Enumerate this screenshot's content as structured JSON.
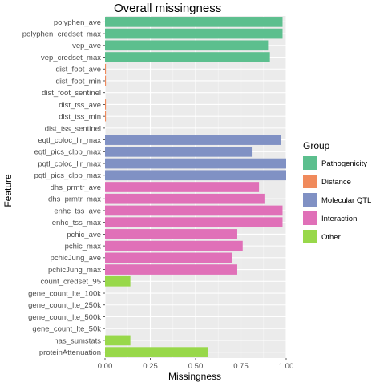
{
  "chart_data": {
    "type": "bar",
    "orientation": "horizontal",
    "title": "Overall missingness",
    "xlabel": "Missingness",
    "ylabel": "Feature",
    "xlim": [
      0,
      1
    ],
    "x_ticks": [
      "0.00",
      "0.25",
      "0.50",
      "0.75",
      "1.00"
    ],
    "grid": true,
    "legend": {
      "title": "Group",
      "position": "right",
      "entries": [
        {
          "name": "Pathogenicity",
          "color": "#5cbf8e"
        },
        {
          "name": "Distance",
          "color": "#f08a5c"
        },
        {
          "name": "Molecular QTL",
          "color": "#8091c4"
        },
        {
          "name": "Interaction",
          "color": "#e070b8"
        },
        {
          "name": "Other",
          "color": "#98d84a"
        }
      ]
    },
    "bars": [
      {
        "feature": "polyphen_ave",
        "group": "Pathogenicity",
        "value": 0.98
      },
      {
        "feature": "polyphen_credset_max",
        "group": "Pathogenicity",
        "value": 0.98
      },
      {
        "feature": "vep_ave",
        "group": "Pathogenicity",
        "value": 0.9
      },
      {
        "feature": "vep_credset_max",
        "group": "Pathogenicity",
        "value": 0.91
      },
      {
        "feature": "dist_foot_ave",
        "group": "Distance",
        "value": 0.005
      },
      {
        "feature": "dist_foot_min",
        "group": "Distance",
        "value": 0.005
      },
      {
        "feature": "dist_foot_sentinel",
        "group": "Distance",
        "value": 0
      },
      {
        "feature": "dist_tss_ave",
        "group": "Distance",
        "value": 0.005
      },
      {
        "feature": "dist_tss_min",
        "group": "Distance",
        "value": 0.005
      },
      {
        "feature": "dist_tss_sentinel",
        "group": "Distance",
        "value": 0
      },
      {
        "feature": "eqtl_coloc_llr_max",
        "group": "Molecular QTL",
        "value": 0.97
      },
      {
        "feature": "eqtl_pics_clpp_max",
        "group": "Molecular QTL",
        "value": 0.81
      },
      {
        "feature": "pqtl_coloc_llr_max",
        "group": "Molecular QTL",
        "value": 1.0
      },
      {
        "feature": "pqtl_pics_clpp_max",
        "group": "Molecular QTL",
        "value": 1.0
      },
      {
        "feature": "dhs_prmtr_ave",
        "group": "Interaction",
        "value": 0.85
      },
      {
        "feature": "dhs_prmtr_max",
        "group": "Interaction",
        "value": 0.88
      },
      {
        "feature": "enhc_tss_ave",
        "group": "Interaction",
        "value": 0.98
      },
      {
        "feature": "enhc_tss_max",
        "group": "Interaction",
        "value": 0.98
      },
      {
        "feature": "pchic_ave",
        "group": "Interaction",
        "value": 0.73
      },
      {
        "feature": "pchic_max",
        "group": "Interaction",
        "value": 0.76
      },
      {
        "feature": "pchicJung_ave",
        "group": "Interaction",
        "value": 0.7
      },
      {
        "feature": "pchicJung_max",
        "group": "Interaction",
        "value": 0.73
      },
      {
        "feature": "count_credset_95",
        "group": "Other",
        "value": 0.14
      },
      {
        "feature": "gene_count_lte_100k",
        "group": "Other",
        "value": 0
      },
      {
        "feature": "gene_count_lte_250k",
        "group": "Other",
        "value": 0
      },
      {
        "feature": "gene_count_lte_500k",
        "group": "Other",
        "value": 0
      },
      {
        "feature": "gene_count_lte_50k",
        "group": "Other",
        "value": 0
      },
      {
        "feature": "has_sumstats",
        "group": "Other",
        "value": 0.14
      },
      {
        "feature": "proteinAttenuation",
        "group": "Other",
        "value": 0.57
      }
    ]
  }
}
